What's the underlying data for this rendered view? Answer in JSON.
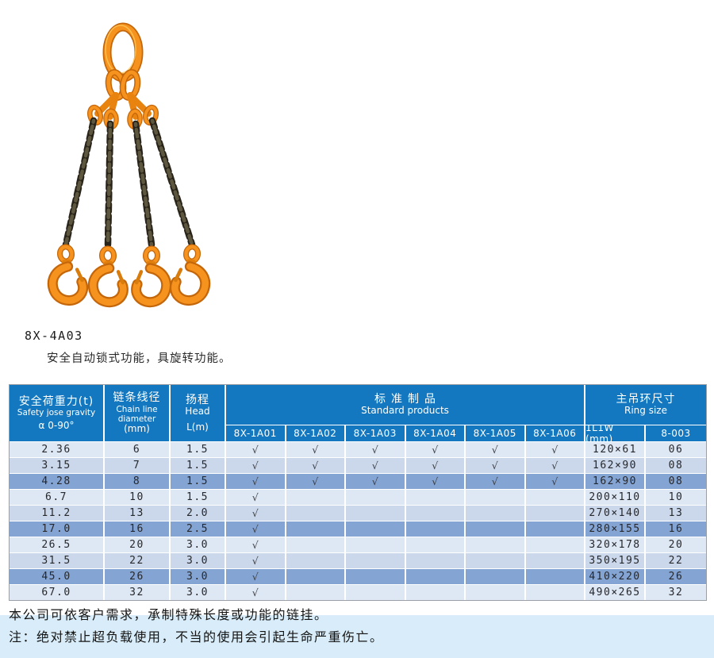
{
  "product": {
    "model": "8X-4A03",
    "description": "安全自动锁式功能，具旋转功能。"
  },
  "illustration": {
    "subject": "four-leg-chain-sling-with-swivel-self-locking-hooks",
    "hardware_color": "#f6921e",
    "chain_color": "#2a251a"
  },
  "table": {
    "header": {
      "load_zh": "安全荷重力(t)",
      "load_en": "Safety jose gravity",
      "load_angle": "α 0-90°",
      "dia_zh": "链条线径",
      "dia_en1": "Chain line",
      "dia_en2": "diameter",
      "dia_unit": "(mm)",
      "head_zh": "扬程",
      "head_en": "Head",
      "head_unit": "L(m)",
      "std_zh": "标准制品",
      "std_en": "Standard products",
      "ring_zh": "主吊环尺寸",
      "ring_en": "Ring size",
      "product_columns": [
        "8X-1A01",
        "8X-1A02",
        "8X-1A03",
        "8X-1A04",
        "8X-1A05",
        "8X-1A06"
      ],
      "ring_columns": [
        "1L1W (mm)",
        "8-003"
      ]
    },
    "check_mark": "√",
    "rows": [
      {
        "load": "2.36",
        "diameter": "6",
        "head": "1.5",
        "products": [
          1,
          1,
          1,
          1,
          1,
          1
        ],
        "ring": "120×61",
        "size": "06"
      },
      {
        "load": "3.15",
        "diameter": "7",
        "head": "1.5",
        "products": [
          1,
          1,
          1,
          1,
          1,
          1
        ],
        "ring": "162×90",
        "size": "08"
      },
      {
        "load": "4.28",
        "diameter": "8",
        "head": "1.5",
        "products": [
          1,
          1,
          1,
          1,
          1,
          1
        ],
        "ring": "162×90",
        "size": "08"
      },
      {
        "load": "6.7",
        "diameter": "10",
        "head": "1.5",
        "products": [
          1,
          0,
          0,
          0,
          0,
          0
        ],
        "ring": "200×110",
        "size": "10"
      },
      {
        "load": "11.2",
        "diameter": "13",
        "head": "2.0",
        "products": [
          1,
          0,
          0,
          0,
          0,
          0
        ],
        "ring": "270×140",
        "size": "13"
      },
      {
        "load": "17.0",
        "diameter": "16",
        "head": "2.5",
        "products": [
          1,
          0,
          0,
          0,
          0,
          0
        ],
        "ring": "280×155",
        "size": "16"
      },
      {
        "load": "26.5",
        "diameter": "20",
        "head": "3.0",
        "products": [
          1,
          0,
          0,
          0,
          0,
          0
        ],
        "ring": "320×178",
        "size": "20"
      },
      {
        "load": "31.5",
        "diameter": "22",
        "head": "3.0",
        "products": [
          1,
          0,
          0,
          0,
          0,
          0
        ],
        "ring": "350×195",
        "size": "22"
      },
      {
        "load": "45.0",
        "diameter": "26",
        "head": "3.0",
        "products": [
          1,
          0,
          0,
          0,
          0,
          0
        ],
        "ring": "410×220",
        "size": "26"
      },
      {
        "load": "67.0",
        "diameter": "32",
        "head": "3.0",
        "products": [
          1,
          0,
          0,
          0,
          0,
          0
        ],
        "ring": "490×265",
        "size": "32"
      }
    ]
  },
  "footer": {
    "line1": "本公司可依客户需求，承制特殊长度或功能的链挂。",
    "line2": "注：绝对禁止超负载使用，不当的使用会引起生命严重伤亡。"
  },
  "colors": {
    "header_blue": "#1478c0",
    "row_light": "#dee7f4",
    "row_mid": "#cbd8ec",
    "row_dark": "#84a4d4",
    "footer_band": "#d8edf9"
  }
}
